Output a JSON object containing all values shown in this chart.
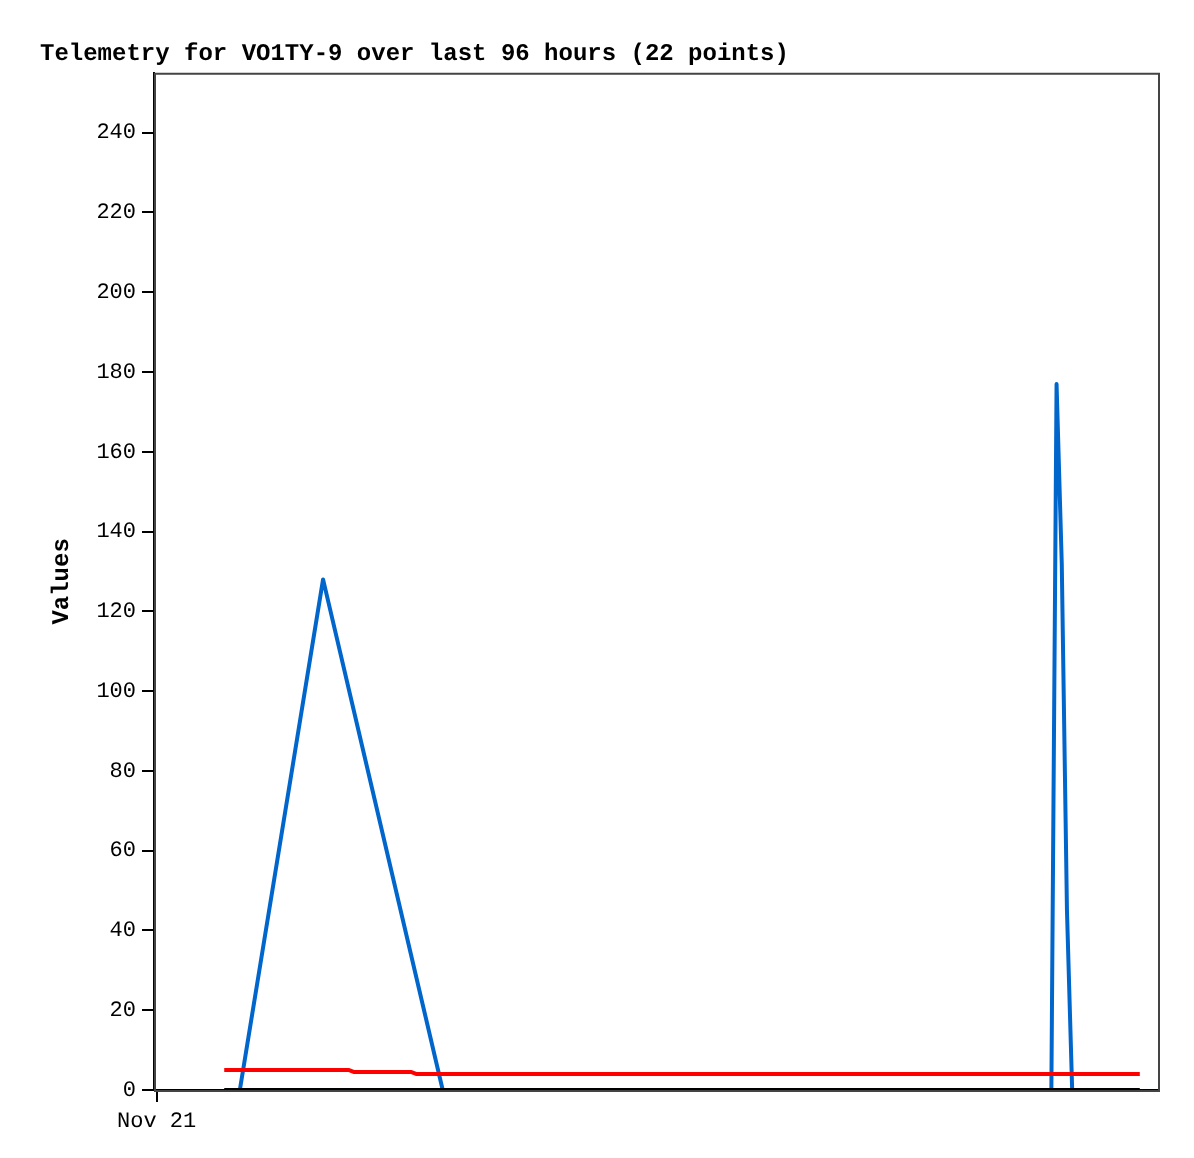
{
  "chart_data": {
    "type": "line",
    "title": "Telemetry for VO1TY-9 over last 96 hours (22 points)",
    "ylabel": "Values",
    "categories": [
      "Nov 21",
      null,
      null,
      null,
      null,
      null,
      null,
      null,
      null,
      null,
      null,
      null,
      null,
      null,
      null,
      null,
      null,
      null,
      null,
      null,
      null,
      null,
      null,
      null,
      null,
      null,
      null,
      null,
      null,
      null,
      null,
      null,
      null,
      null,
      null,
      null,
      null,
      null,
      null,
      null,
      null,
      null,
      null,
      null,
      null,
      null,
      null,
      null,
      null,
      null,
      null,
      null,
      null,
      null,
      null,
      null,
      null,
      null,
      null,
      null,
      null,
      null,
      null,
      null,
      null,
      null,
      null,
      null,
      null,
      null,
      null,
      null,
      null,
      null,
      null,
      null,
      null,
      null,
      null,
      null,
      null,
      null,
      null,
      null,
      null,
      null,
      null,
      null,
      null,
      null,
      null,
      null,
      null,
      null,
      null,
      null,
      null,
      null,
      null,
      null,
      null,
      null,
      null,
      null,
      null,
      null,
      null,
      null,
      null,
      null,
      null,
      null,
      null,
      null,
      null,
      null,
      null,
      null,
      null,
      null,
      null,
      null,
      null,
      null,
      null,
      null,
      null,
      null,
      null,
      null,
      null,
      null,
      null,
      null,
      null,
      null,
      null,
      null,
      null,
      null,
      null,
      null,
      null,
      null,
      null,
      null,
      null,
      null,
      null,
      null,
      null,
      null,
      null,
      null,
      null,
      null,
      null,
      null,
      null,
      null,
      null,
      null,
      null,
      null,
      null,
      null,
      null,
      null,
      null,
      null,
      null,
      null,
      null,
      null,
      null,
      null,
      null,
      null,
      null,
      null,
      null,
      null,
      null,
      null,
      null,
      null,
      null,
      null,
      null,
      null,
      null,
      null,
      null
    ],
    "ylim": [
      0,
      255
    ],
    "yticks": [
      0,
      20,
      40,
      60,
      80,
      100,
      120,
      140,
      160,
      180,
      200,
      220,
      240
    ],
    "grid": false,
    "legend": false,
    "marker": "none",
    "line_style": "solid",
    "series": [
      {
        "color": "#000000",
        "values": [
          null,
          null,
          null,
          null,
          null,
          null,
          null,
          null,
          null,
          null,
          null,
          null,
          null,
          0,
          null,
          null,
          null,
          null,
          null,
          null,
          null,
          null,
          null,
          null,
          null,
          null,
          null,
          null,
          null,
          null,
          null,
          null,
          null,
          null,
          null,
          null,
          null,
          null,
          null,
          null,
          null,
          null,
          null,
          null,
          null,
          null,
          null,
          null,
          null,
          null,
          null,
          null,
          null,
          null,
          null,
          null,
          null,
          null,
          null,
          null,
          null,
          null,
          null,
          null,
          null,
          null,
          null,
          null,
          null,
          null,
          null,
          null,
          null,
          null,
          null,
          null,
          null,
          null,
          null,
          null,
          null,
          null,
          null,
          null,
          null,
          null,
          null,
          null,
          null,
          null,
          null,
          null,
          null,
          null,
          null,
          null,
          null,
          null,
          null,
          null,
          null,
          null,
          null,
          null,
          null,
          null,
          null,
          null,
          null,
          null,
          null,
          null,
          null,
          null,
          null,
          null,
          null,
          null,
          null,
          null,
          null,
          null,
          null,
          null,
          null,
          null,
          null,
          null,
          null,
          null,
          null,
          null,
          null,
          null,
          null,
          null,
          null,
          null,
          null,
          null,
          null,
          null,
          null,
          null,
          null,
          null,
          null,
          null,
          null,
          null,
          null,
          null,
          null,
          null,
          null,
          null,
          null,
          null,
          null,
          null,
          null,
          null,
          null,
          null,
          null,
          null,
          null,
          null,
          null,
          null,
          null,
          null,
          null,
          null,
          null,
          null,
          null,
          null,
          null,
          null,
          null,
          null,
          null,
          null,
          null,
          null,
          null,
          null,
          null,
          0,
          null,
          null,
          null
        ]
      },
      {
        "color": "#ff0000",
        "values": [
          null,
          null,
          null,
          null,
          null,
          null,
          null,
          null,
          null,
          null,
          null,
          null,
          null,
          5,
          null,
          null,
          null,
          null,
          null,
          null,
          null,
          null,
          null,
          null,
          null,
          null,
          null,
          null,
          null,
          null,
          null,
          null,
          null,
          null,
          null,
          null,
          null,
          5,
          4.5,
          null,
          null,
          null,
          null,
          null,
          null,
          null,
          null,
          null,
          null,
          4.5,
          4,
          null,
          null,
          null,
          null,
          null,
          null,
          null,
          null,
          null,
          null,
          null,
          null,
          null,
          null,
          null,
          null,
          null,
          null,
          null,
          null,
          null,
          null,
          null,
          null,
          null,
          null,
          null,
          null,
          null,
          null,
          null,
          null,
          null,
          null,
          null,
          null,
          null,
          null,
          null,
          null,
          null,
          null,
          null,
          null,
          null,
          null,
          null,
          null,
          null,
          null,
          null,
          null,
          null,
          null,
          null,
          null,
          null,
          null,
          null,
          null,
          null,
          null,
          null,
          null,
          null,
          null,
          null,
          null,
          null,
          null,
          null,
          null,
          null,
          null,
          null,
          null,
          null,
          null,
          null,
          null,
          null,
          null,
          null,
          null,
          null,
          null,
          null,
          null,
          null,
          null,
          null,
          null,
          null,
          null,
          null,
          null,
          null,
          null,
          null,
          null,
          null,
          null,
          null,
          null,
          null,
          null,
          null,
          null,
          null,
          null,
          null,
          null,
          null,
          null,
          null,
          null,
          null,
          null,
          null,
          null,
          null,
          null,
          null,
          null,
          null,
          null,
          null,
          null,
          null,
          null,
          null,
          null,
          null,
          null,
          null,
          null,
          null,
          null,
          4,
          null,
          null,
          null
        ]
      },
      {
        "color": "#0066cc",
        "values": [
          null,
          null,
          null,
          null,
          null,
          null,
          null,
          null,
          null,
          null,
          null,
          null,
          null,
          null,
          null,
          null,
          0,
          null,
          null,
          null,
          null,
          null,
          null,
          null,
          null,
          null,
          null,
          null,
          null,
          null,
          null,
          null,
          128,
          null,
          null,
          null,
          null,
          null,
          null,
          null,
          null,
          null,
          null,
          null,
          null,
          null,
          null,
          null,
          null,
          null,
          null,
          null,
          null,
          null,
          null,
          0,
          null,
          null,
          null,
          null,
          null,
          null,
          null,
          null,
          null,
          null,
          null,
          null,
          null,
          null,
          null,
          null,
          null,
          null,
          null,
          null,
          null,
          null,
          null,
          null,
          null,
          null,
          null,
          null,
          null,
          null,
          null,
          null,
          null,
          null,
          null,
          null,
          null,
          null,
          null,
          null,
          null,
          null,
          null,
          null,
          null,
          null,
          null,
          null,
          null,
          null,
          null,
          null,
          null,
          null,
          null,
          null,
          null,
          null,
          null,
          null,
          null,
          null,
          null,
          null,
          null,
          null,
          null,
          null,
          null,
          null,
          null,
          null,
          null,
          null,
          null,
          null,
          null,
          null,
          null,
          null,
          null,
          null,
          null,
          null,
          null,
          null,
          null,
          null,
          null,
          null,
          null,
          null,
          null,
          null,
          null,
          null,
          null,
          null,
          null,
          null,
          null,
          null,
          null,
          null,
          null,
          null,
          null,
          null,
          null,
          null,
          null,
          null,
          null,
          null,
          null,
          null,
          0,
          177,
          132,
          45,
          0,
          null,
          null,
          null,
          null,
          null,
          null,
          null,
          null,
          null,
          null,
          null,
          null,
          null,
          null,
          null,
          null
        ]
      }
    ]
  }
}
